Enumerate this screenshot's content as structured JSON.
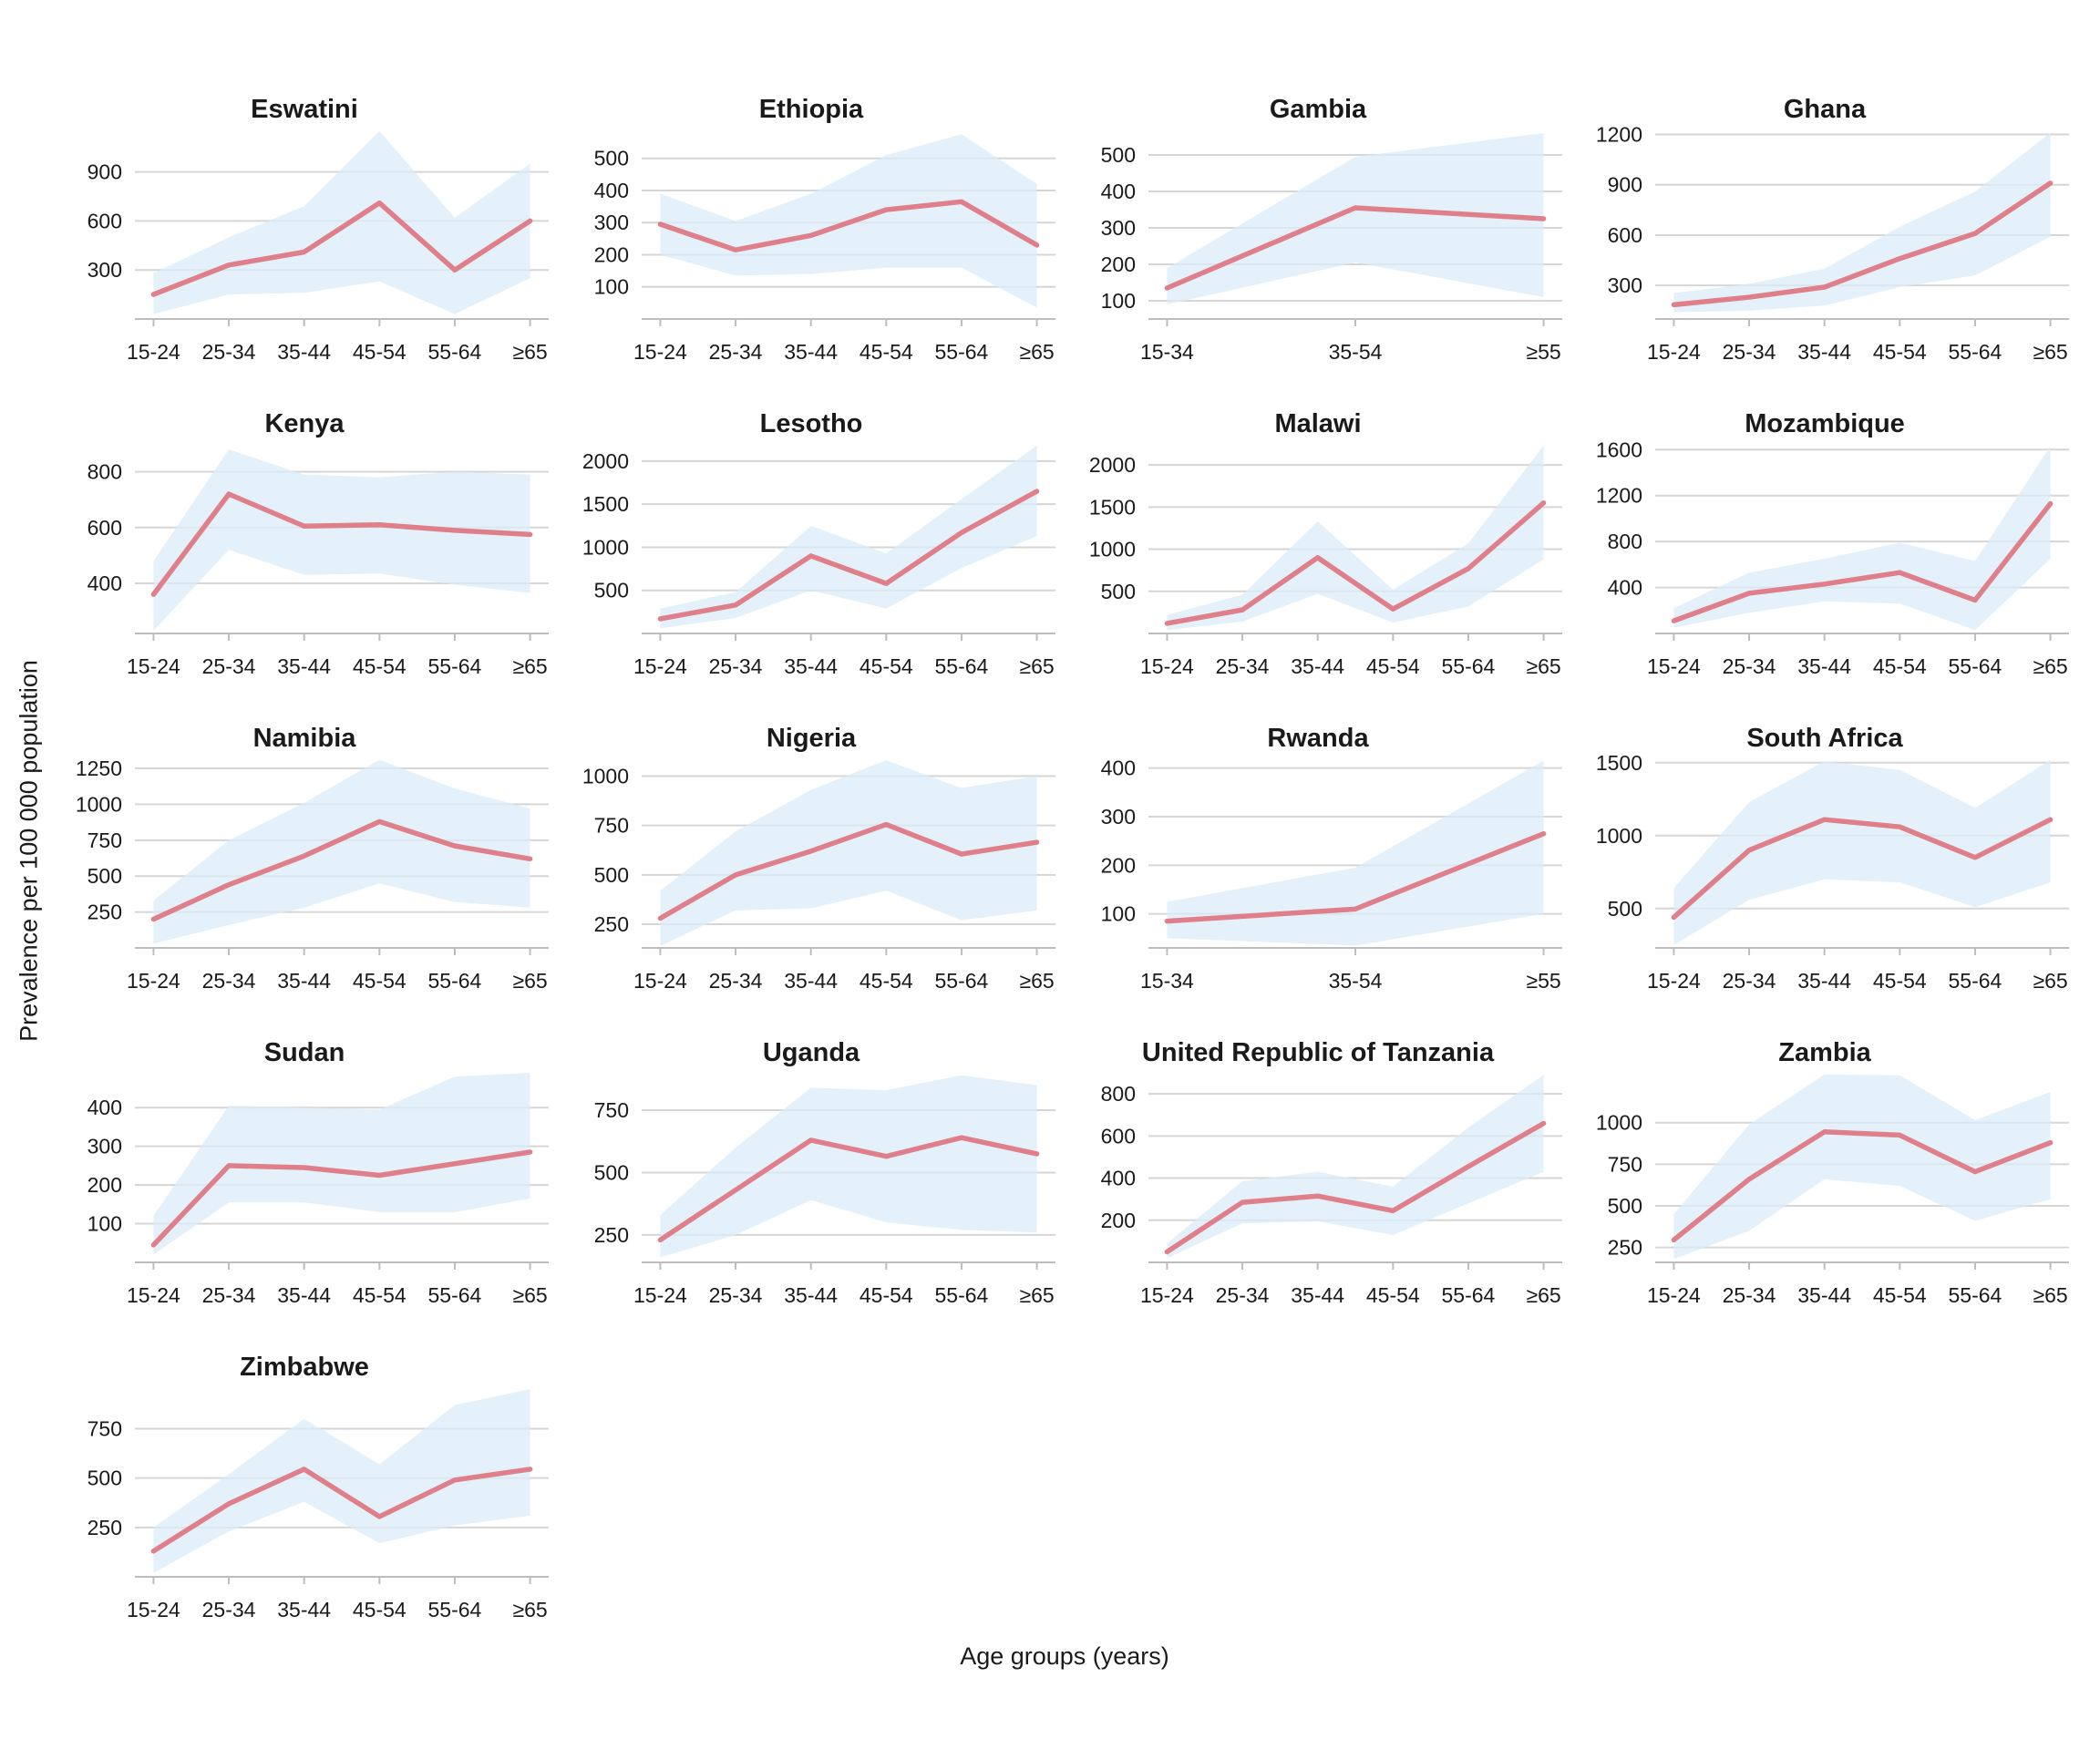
{
  "figure": {
    "y_axis_label": "Prevalence per 100 000 population",
    "x_axis_label": "Age groups (years)",
    "colors": {
      "line": "#de7f8a",
      "ribbon": "#dbecf8",
      "grid": "#d6d6d6",
      "axis": "#bdbdbd",
      "text": "#1a1a1a"
    }
  },
  "chart_data": [
    {
      "type": "line",
      "title": "Eswatini",
      "categories": [
        "15-24",
        "25-34",
        "35-44",
        "45-54",
        "55-64",
        "≥65"
      ],
      "yticks": [
        300,
        600,
        900
      ],
      "ylim": [
        0,
        1160
      ],
      "series": [
        {
          "name": "estimate",
          "values": [
            150,
            330,
            410,
            710,
            300,
            600
          ]
        },
        {
          "name": "lower_bound",
          "values": [
            30,
            150,
            160,
            230,
            30,
            250
          ]
        },
        {
          "name": "upper_bound",
          "values": [
            280,
            500,
            690,
            1150,
            620,
            950
          ]
        }
      ]
    },
    {
      "type": "line",
      "title": "Ethiopia",
      "categories": [
        "15-24",
        "25-34",
        "35-44",
        "45-54",
        "55-64",
        "≥65"
      ],
      "yticks": [
        100,
        200,
        300,
        400,
        500
      ],
      "ylim": [
        0,
        590
      ],
      "series": [
        {
          "name": "estimate",
          "values": [
            295,
            215,
            260,
            340,
            365,
            230
          ]
        },
        {
          "name": "lower_bound",
          "values": [
            200,
            135,
            140,
            160,
            160,
            35
          ]
        },
        {
          "name": "upper_bound",
          "values": [
            390,
            305,
            390,
            510,
            575,
            420
          ]
        }
      ]
    },
    {
      "type": "line",
      "title": "Gambia",
      "categories": [
        "15-34",
        "35-54",
        "≥55"
      ],
      "yticks": [
        100,
        200,
        300,
        400,
        500
      ],
      "ylim": [
        50,
        570
      ],
      "series": [
        {
          "name": "estimate",
          "values": [
            135,
            355,
            325
          ]
        },
        {
          "name": "lower_bound",
          "values": [
            90,
            205,
            110
          ]
        },
        {
          "name": "upper_bound",
          "values": [
            190,
            495,
            560
          ]
        }
      ]
    },
    {
      "type": "line",
      "title": "Ghana",
      "categories": [
        "15-24",
        "25-34",
        "35-44",
        "45-54",
        "55-64",
        "≥65"
      ],
      "yticks": [
        300,
        600,
        900,
        1200
      ],
      "ylim": [
        100,
        1230
      ],
      "series": [
        {
          "name": "estimate",
          "values": [
            185,
            230,
            290,
            460,
            610,
            910
          ]
        },
        {
          "name": "lower_bound",
          "values": [
            140,
            150,
            180,
            290,
            360,
            590
          ]
        },
        {
          "name": "upper_bound",
          "values": [
            255,
            310,
            400,
            650,
            860,
            1210
          ]
        }
      ]
    },
    {
      "type": "line",
      "title": "Kenya",
      "categories": [
        "15-24",
        "25-34",
        "35-44",
        "45-54",
        "55-64",
        "≥65"
      ],
      "yticks": [
        400,
        600,
        800
      ],
      "ylim": [
        220,
        900
      ],
      "series": [
        {
          "name": "estimate",
          "values": [
            360,
            720,
            605,
            610,
            590,
            575
          ]
        },
        {
          "name": "lower_bound",
          "values": [
            230,
            520,
            430,
            435,
            395,
            365
          ]
        },
        {
          "name": "upper_bound",
          "values": [
            480,
            880,
            790,
            780,
            800,
            790
          ]
        }
      ]
    },
    {
      "type": "line",
      "title": "Lesotho",
      "categories": [
        "15-24",
        "25-34",
        "35-44",
        "45-54",
        "55-64",
        "≥65"
      ],
      "yticks": [
        500,
        1000,
        1500,
        2000
      ],
      "ylim": [
        0,
        2200
      ],
      "series": [
        {
          "name": "estimate",
          "values": [
            170,
            330,
            900,
            580,
            1170,
            1650
          ]
        },
        {
          "name": "lower_bound",
          "values": [
            60,
            180,
            500,
            290,
            760,
            1130
          ]
        },
        {
          "name": "upper_bound",
          "values": [
            290,
            480,
            1250,
            930,
            1560,
            2180
          ]
        }
      ]
    },
    {
      "type": "line",
      "title": "Malawi",
      "categories": [
        "15-24",
        "25-34",
        "35-44",
        "45-54",
        "55-64",
        "≥65"
      ],
      "yticks": [
        500,
        1000,
        1500,
        2000
      ],
      "ylim": [
        0,
        2250
      ],
      "series": [
        {
          "name": "estimate",
          "values": [
            120,
            280,
            900,
            290,
            770,
            1550
          ]
        },
        {
          "name": "lower_bound",
          "values": [
            40,
            140,
            470,
            130,
            320,
            880
          ]
        },
        {
          "name": "upper_bound",
          "values": [
            220,
            460,
            1330,
            520,
            1070,
            2230
          ]
        }
      ]
    },
    {
      "type": "line",
      "title": "Mozambique",
      "categories": [
        "15-24",
        "25-34",
        "35-44",
        "45-54",
        "55-64",
        "≥65"
      ],
      "yticks": [
        400,
        800,
        1200,
        1600
      ],
      "ylim": [
        0,
        1650
      ],
      "series": [
        {
          "name": "estimate",
          "values": [
            110,
            350,
            430,
            530,
            290,
            1130
          ]
        },
        {
          "name": "lower_bound",
          "values": [
            50,
            180,
            280,
            260,
            30,
            650
          ]
        },
        {
          "name": "upper_bound",
          "values": [
            220,
            530,
            650,
            790,
            630,
            1630
          ]
        }
      ]
    },
    {
      "type": "line",
      "title": "Namibia",
      "categories": [
        "15-24",
        "25-34",
        "35-44",
        "45-54",
        "55-64",
        "≥65"
      ],
      "yticks": [
        250,
        500,
        750,
        1000,
        1250
      ],
      "ylim": [
        0,
        1320
      ],
      "series": [
        {
          "name": "estimate",
          "values": [
            200,
            440,
            640,
            880,
            710,
            620
          ]
        },
        {
          "name": "lower_bound",
          "values": [
            30,
            160,
            280,
            450,
            320,
            280
          ]
        },
        {
          "name": "upper_bound",
          "values": [
            330,
            750,
            1010,
            1310,
            1110,
            970
          ]
        }
      ]
    },
    {
      "type": "line",
      "title": "Nigeria",
      "categories": [
        "15-24",
        "25-34",
        "35-44",
        "45-54",
        "55-64",
        "≥65"
      ],
      "yticks": [
        250,
        500,
        750,
        1000
      ],
      "ylim": [
        130,
        1090
      ],
      "series": [
        {
          "name": "estimate",
          "values": [
            280,
            500,
            620,
            755,
            605,
            665
          ]
        },
        {
          "name": "lower_bound",
          "values": [
            140,
            320,
            330,
            420,
            270,
            320
          ]
        },
        {
          "name": "upper_bound",
          "values": [
            420,
            720,
            930,
            1080,
            940,
            1000
          ]
        }
      ]
    },
    {
      "type": "line",
      "title": "Rwanda",
      "categories": [
        "15-34",
        "35-54",
        "≥55"
      ],
      "yticks": [
        100,
        200,
        300,
        400
      ],
      "ylim": [
        30,
        420
      ],
      "series": [
        {
          "name": "estimate",
          "values": [
            85,
            110,
            265
          ]
        },
        {
          "name": "lower_bound",
          "values": [
            50,
            35,
            100
          ]
        },
        {
          "name": "upper_bound",
          "values": [
            125,
            195,
            415
          ]
        }
      ]
    },
    {
      "type": "line",
      "title": "South Africa",
      "categories": [
        "15-24",
        "25-34",
        "35-44",
        "45-54",
        "55-64",
        "≥65"
      ],
      "yticks": [
        500,
        1000,
        1500
      ],
      "ylim": [
        230,
        1530
      ],
      "series": [
        {
          "name": "estimate",
          "values": [
            440,
            900,
            1110,
            1060,
            850,
            1110
          ]
        },
        {
          "name": "lower_bound",
          "values": [
            250,
            560,
            700,
            680,
            510,
            680
          ]
        },
        {
          "name": "upper_bound",
          "values": [
            640,
            1230,
            1510,
            1450,
            1190,
            1520
          ]
        }
      ]
    },
    {
      "type": "line",
      "title": "Sudan",
      "categories": [
        "15-24",
        "25-34",
        "35-44",
        "45-54",
        "55-64",
        "≥65"
      ],
      "yticks": [
        100,
        200,
        300,
        400
      ],
      "ylim": [
        0,
        490
      ],
      "series": [
        {
          "name": "estimate",
          "values": [
            45,
            250,
            245,
            225,
            255,
            285
          ]
        },
        {
          "name": "lower_bound",
          "values": [
            20,
            155,
            155,
            130,
            130,
            165
          ]
        },
        {
          "name": "upper_bound",
          "values": [
            120,
            405,
            400,
            395,
            480,
            490
          ]
        }
      ]
    },
    {
      "type": "line",
      "title": "Uganda",
      "categories": [
        "15-24",
        "25-34",
        "35-44",
        "45-54",
        "55-64",
        "≥65"
      ],
      "yticks": [
        250,
        500,
        750
      ],
      "ylim": [
        140,
        900
      ],
      "series": [
        {
          "name": "estimate",
          "values": [
            230,
            430,
            630,
            565,
            640,
            575
          ]
        },
        {
          "name": "lower_bound",
          "values": [
            160,
            250,
            390,
            300,
            270,
            260
          ]
        },
        {
          "name": "upper_bound",
          "values": [
            330,
            600,
            840,
            830,
            890,
            850
          ]
        }
      ]
    },
    {
      "type": "line",
      "title": "United Republic of Tanzania",
      "categories": [
        "15-24",
        "25-34",
        "35-44",
        "45-54",
        "55-64",
        "≥65"
      ],
      "yticks": [
        200,
        400,
        600,
        800
      ],
      "ylim": [
        0,
        900
      ],
      "series": [
        {
          "name": "estimate",
          "values": [
            50,
            285,
            315,
            245,
            455,
            660
          ]
        },
        {
          "name": "lower_bound",
          "values": [
            20,
            185,
            195,
            130,
            280,
            430
          ]
        },
        {
          "name": "upper_bound",
          "values": [
            90,
            385,
            430,
            360,
            640,
            890
          ]
        }
      ]
    },
    {
      "type": "line",
      "title": "Zambia",
      "categories": [
        "15-24",
        "25-34",
        "35-44",
        "45-54",
        "55-64",
        "≥65"
      ],
      "yticks": [
        250,
        500,
        750,
        1000
      ],
      "ylim": [
        160,
        1300
      ],
      "series": [
        {
          "name": "estimate",
          "values": [
            295,
            660,
            945,
            925,
            705,
            880
          ]
        },
        {
          "name": "lower_bound",
          "values": [
            180,
            350,
            660,
            620,
            410,
            540
          ]
        },
        {
          "name": "upper_bound",
          "values": [
            450,
            990,
            1290,
            1285,
            1015,
            1185
          ]
        }
      ]
    },
    {
      "type": "line",
      "title": "Zimbabwe",
      "categories": [
        "15-24",
        "25-34",
        "35-44",
        "45-54",
        "55-64",
        "≥65"
      ],
      "yticks": [
        250,
        500,
        750
      ],
      "ylim": [
        0,
        960
      ],
      "series": [
        {
          "name": "estimate",
          "values": [
            130,
            370,
            545,
            305,
            490,
            545
          ]
        },
        {
          "name": "lower_bound",
          "values": [
            20,
            230,
            380,
            170,
            260,
            310
          ]
        },
        {
          "name": "upper_bound",
          "values": [
            250,
            520,
            800,
            570,
            870,
            950
          ]
        }
      ]
    }
  ]
}
